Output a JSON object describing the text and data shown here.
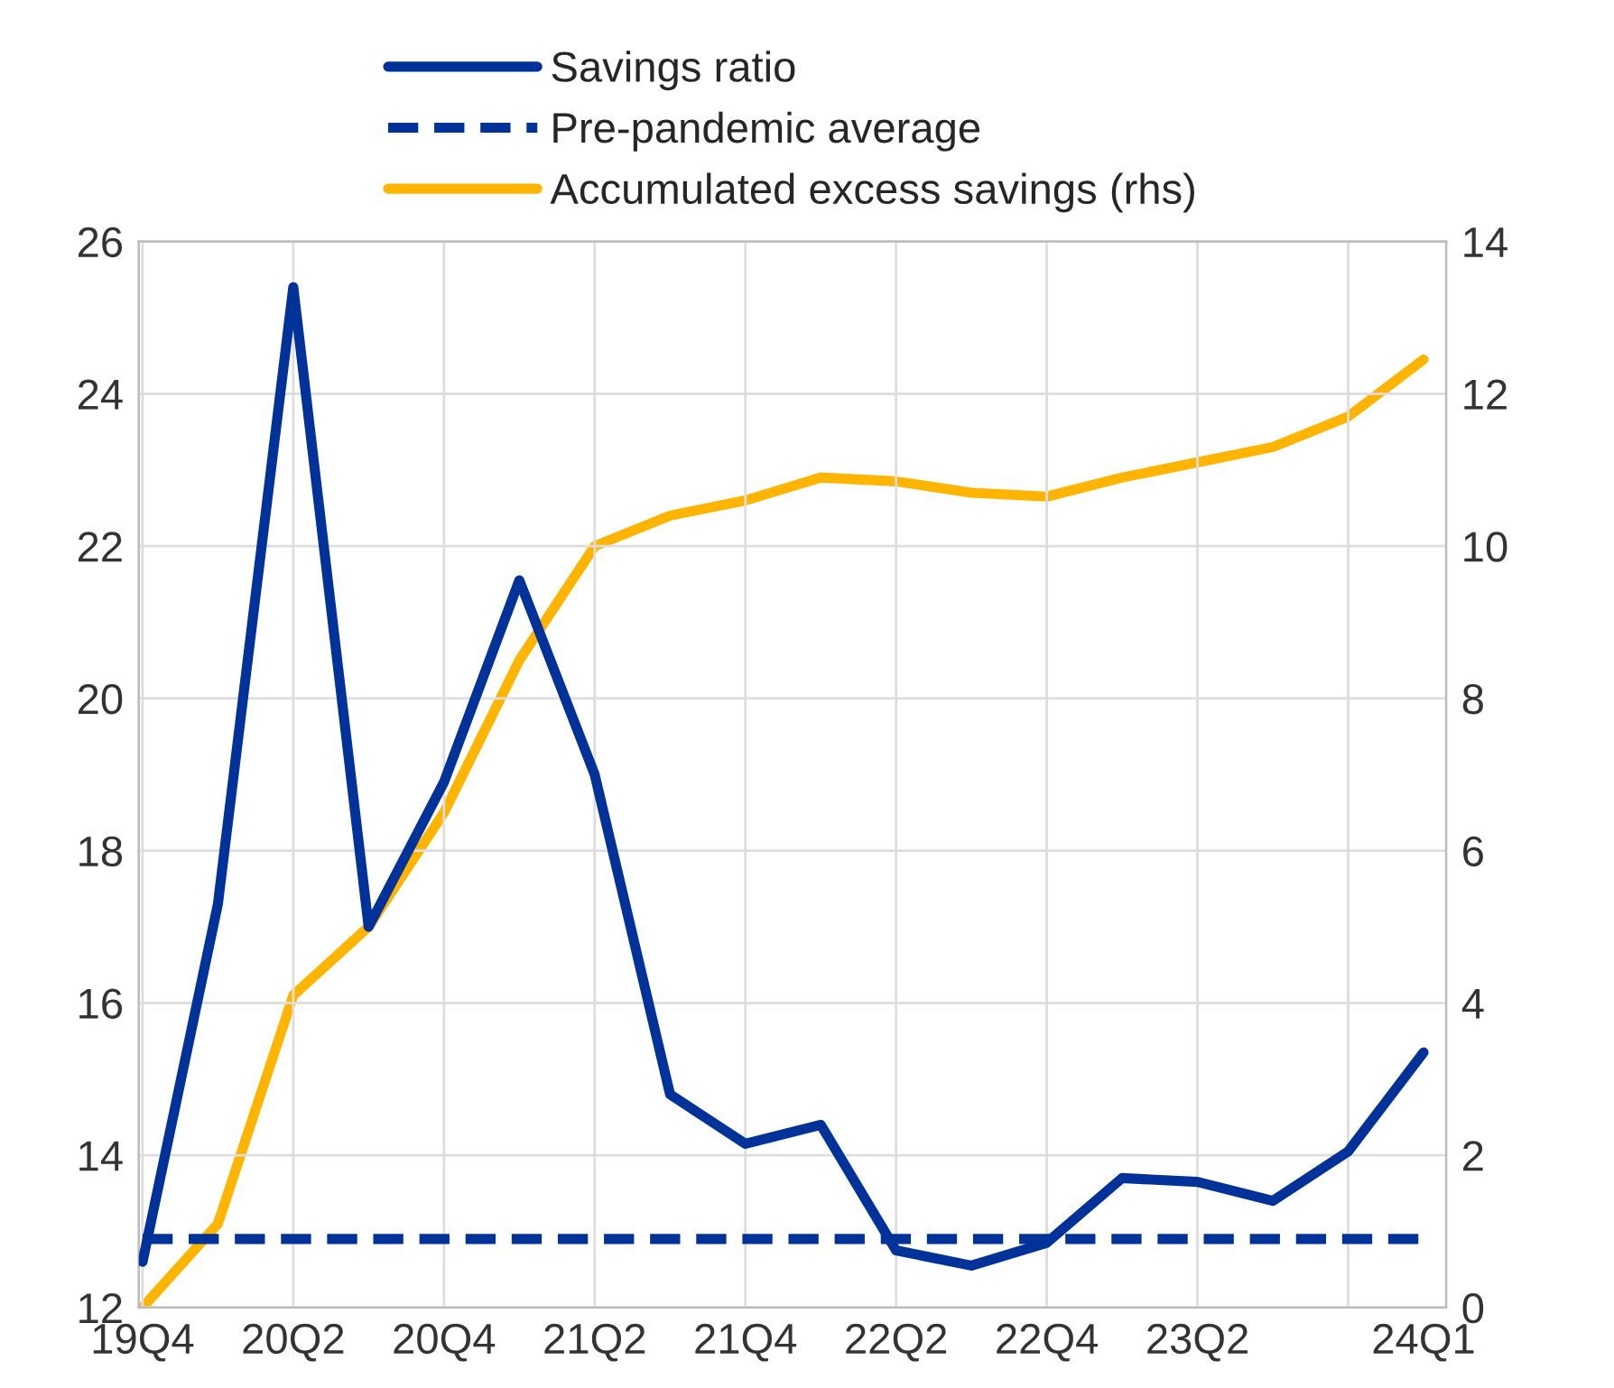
{
  "chart_data": {
    "type": "line",
    "categories": [
      "19Q4",
      null,
      "20Q2",
      null,
      "20Q4",
      null,
      "21Q2",
      null,
      "21Q4",
      null,
      "22Q2",
      null,
      "22Q4",
      null,
      "23Q2",
      null,
      null,
      "24Q1"
    ],
    "series": [
      {
        "name": "Savings ratio",
        "color": "#003299",
        "line_style": "solid",
        "values": [
          12.6,
          17.3,
          25.4,
          17.0,
          18.9,
          21.55,
          19.0,
          14.8,
          14.15,
          14.4,
          12.75,
          12.55,
          12.85,
          13.7,
          13.65,
          13.4,
          14.05,
          15.35
        ]
      },
      {
        "name": "Pre-pandemic average",
        "color": "#003299",
        "line_style": "dashed",
        "values": [
          12.9,
          12.9,
          12.9,
          12.9,
          12.9,
          12.9,
          12.9,
          12.9,
          12.9,
          12.9,
          12.9,
          12.9,
          12.9,
          12.9,
          12.9,
          12.9,
          12.9,
          12.9
        ]
      },
      {
        "name": "Accumulated excess savings (rhs)",
        "color": "#ffb400",
        "line_style": "solid",
        "axis": "y2",
        "values": [
          0.0,
          1.1,
          4.1,
          5.0,
          6.5,
          8.5,
          10.0,
          10.4,
          10.6,
          10.9,
          10.85,
          10.7,
          10.65,
          10.9,
          11.1,
          11.3,
          11.7,
          12.45
        ]
      }
    ],
    "ylim": [
      12,
      26
    ],
    "yticks": [
      12,
      14,
      16,
      18,
      20,
      22,
      24,
      26
    ],
    "y2lim": [
      0,
      14
    ],
    "y2ticks": [
      0,
      2,
      4,
      6,
      8,
      10,
      12,
      14
    ],
    "grid": true,
    "legend": "top"
  }
}
